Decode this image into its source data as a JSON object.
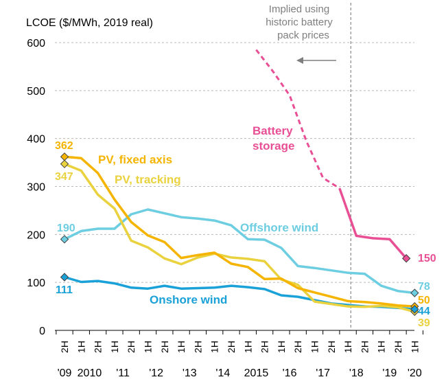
{
  "chart_data": {
    "type": "line",
    "ylabel": "LCOE ($/MWh,  2019 real)",
    "ylim": [
      0,
      600
    ],
    "yticks": [
      0,
      100,
      200,
      300,
      400,
      500,
      600
    ],
    "grid": true,
    "categories": [
      "2H",
      "1H",
      "2H",
      "1H",
      "2H",
      "1H",
      "2H",
      "1H",
      "2H",
      "1H",
      "2H",
      "1H",
      "2H",
      "1H",
      "2H",
      "1H",
      "2H",
      "1H",
      "2H",
      "1H",
      "2H",
      "1H"
    ],
    "year_labels": [
      {
        "label": "'09",
        "at": 0
      },
      {
        "label": "2010",
        "at": 1.5
      },
      {
        "label": "'11",
        "at": 3.5
      },
      {
        "label": "'12",
        "at": 5.5
      },
      {
        "label": "'13",
        "at": 7.5
      },
      {
        "label": "'14",
        "at": 9.5
      },
      {
        "label": "2015",
        "at": 11.5
      },
      {
        "label": "'16",
        "at": 13.5
      },
      {
        "label": "'17",
        "at": 15.5
      },
      {
        "label": "'18",
        "at": 17.5
      },
      {
        "label": "'19",
        "at": 19.5
      },
      {
        "label": "'20",
        "at": 21
      }
    ],
    "series": [
      {
        "name": "Offshore wind",
        "color": "#6dcde1",
        "values": [
          190,
          207,
          212,
          212,
          242,
          252,
          244,
          236,
          233,
          229,
          219,
          190,
          189,
          172,
          134,
          130,
          125,
          120,
          118,
          93,
          82,
          78
        ],
        "start_label": "190",
        "end_label": "78"
      },
      {
        "name": "PV, fixed axis",
        "color": "#f4b400",
        "values": [
          362,
          359,
          328,
          273,
          226,
          198,
          184,
          151,
          157,
          162,
          139,
          132,
          107,
          108,
          88,
          79,
          70,
          61,
          59,
          56,
          52,
          50
        ],
        "start_label": "362",
        "end_label": "50"
      },
      {
        "name": "PV, tracking",
        "color": "#ead23e",
        "values": [
          347,
          333,
          283,
          254,
          187,
          173,
          150,
          138,
          152,
          160,
          152,
          149,
          144,
          106,
          95,
          60,
          55,
          50,
          49,
          51,
          48,
          39
        ],
        "start_label": "347",
        "end_label": "39"
      },
      {
        "name": "Onshore wind",
        "color": "#1aa1d8",
        "values": [
          111,
          101,
          103,
          98,
          89,
          87,
          93,
          87,
          88,
          89,
          93,
          90,
          86,
          73,
          70,
          63,
          56,
          53,
          50,
          49,
          47,
          44
        ],
        "start_label": "111",
        "end_label": "44"
      },
      {
        "name": "Battery storage",
        "name_lines": [
          "Battery",
          "storage"
        ],
        "color": "#e84f94",
        "dashed_x": [
          11.5,
          12.5,
          13.5,
          14.5,
          15.5,
          16.5
        ],
        "dashed_values": [
          585,
          540,
          490,
          395,
          318,
          296
        ],
        "x": [
          16.5,
          17.5,
          18.5,
          19.5,
          20.5
        ],
        "values": [
          296,
          197,
          192,
          190,
          150
        ],
        "end_label": "150"
      }
    ],
    "annotation": {
      "lines": [
        "Implied using",
        "historic battery",
        "pack prices"
      ],
      "divider_at": 17.5
    }
  }
}
